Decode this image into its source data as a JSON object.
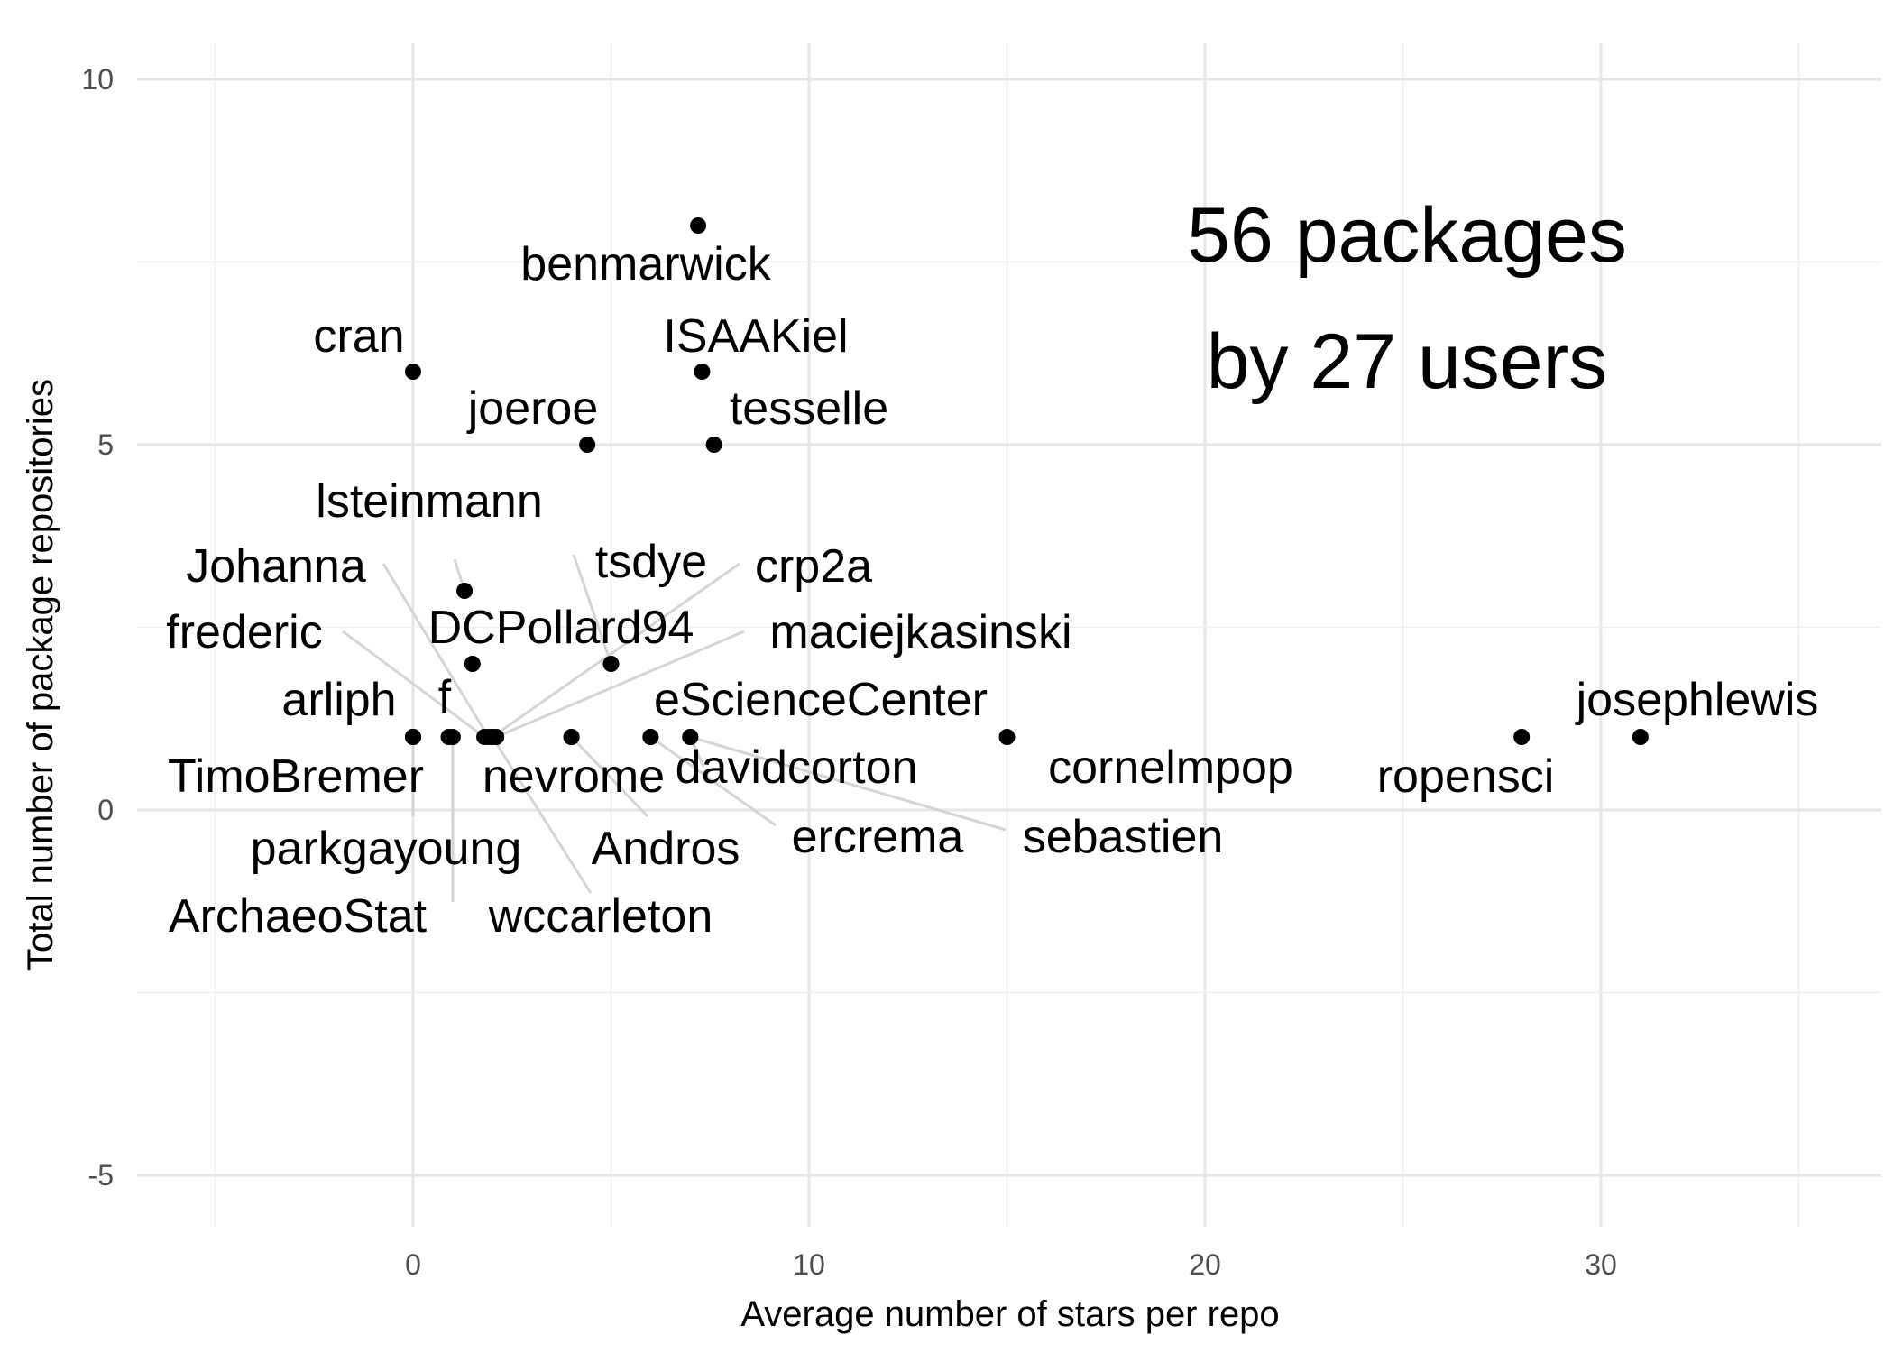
{
  "chart_data": {
    "type": "scatter",
    "xlabel": "Average number of stars per repo",
    "ylabel": "Total number of package repositories",
    "xlim": [
      -5,
      36
    ],
    "ylim": [
      -5,
      10
    ],
    "x_ticks": [
      0,
      10,
      20,
      30
    ],
    "y_ticks": [
      -5,
      0,
      5,
      10
    ],
    "grid": true,
    "annotation": [
      "56 packages",
      "by 27 users"
    ],
    "points": [
      {
        "label": "benmarwick",
        "x": 7.2,
        "y": 8
      },
      {
        "label": "cran",
        "x": 0,
        "y": 6
      },
      {
        "label": "ISAAKiel",
        "x": 7.3,
        "y": 6
      },
      {
        "label": "joeroe",
        "x": 4.4,
        "y": 5
      },
      {
        "label": "tesselle",
        "x": 7.6,
        "y": 5
      },
      {
        "label": "lsteinmann",
        "x": 1.3,
        "y": 3
      },
      {
        "label": "DCPollard94",
        "x": 1.5,
        "y": 2
      },
      {
        "label": "tsdye",
        "x": 5.0,
        "y": 2
      },
      {
        "label": "arliph",
        "x": 0,
        "y": 1
      },
      {
        "label": "f",
        "x": 0.9,
        "y": 1
      },
      {
        "label": "TimoBremer",
        "x": 0,
        "y": 1
      },
      {
        "label": "parkgayoung",
        "x": 0,
        "y": 1
      },
      {
        "label": "ArchaeoStat",
        "x": 1.0,
        "y": 1
      },
      {
        "label": "frederic",
        "x": 1.8,
        "y": 1
      },
      {
        "label": "Johanna",
        "x": 1.9,
        "y": 1
      },
      {
        "label": "crp2a",
        "x": 2.0,
        "y": 1
      },
      {
        "label": "maciejkasinski",
        "x": 2.1,
        "y": 1
      },
      {
        "label": "wccarleton",
        "x": 2.0,
        "y": 1
      },
      {
        "label": "nevrome",
        "x": 4.0,
        "y": 1
      },
      {
        "label": "Andros",
        "x": 4.0,
        "y": 1
      },
      {
        "label": "eScienceCenter",
        "x": 6.0,
        "y": 1
      },
      {
        "label": "davidcorton",
        "x": 7.0,
        "y": 1
      },
      {
        "label": "ercrema",
        "x": 6.0,
        "y": 1
      },
      {
        "label": "sebastien",
        "x": 7.0,
        "y": 1
      },
      {
        "label": "cornelmpop",
        "x": 15.0,
        "y": 1
      },
      {
        "label": "ropensci",
        "x": 28.0,
        "y": 1
      },
      {
        "label": "josephlewis",
        "x": 31.0,
        "y": 1
      }
    ]
  }
}
